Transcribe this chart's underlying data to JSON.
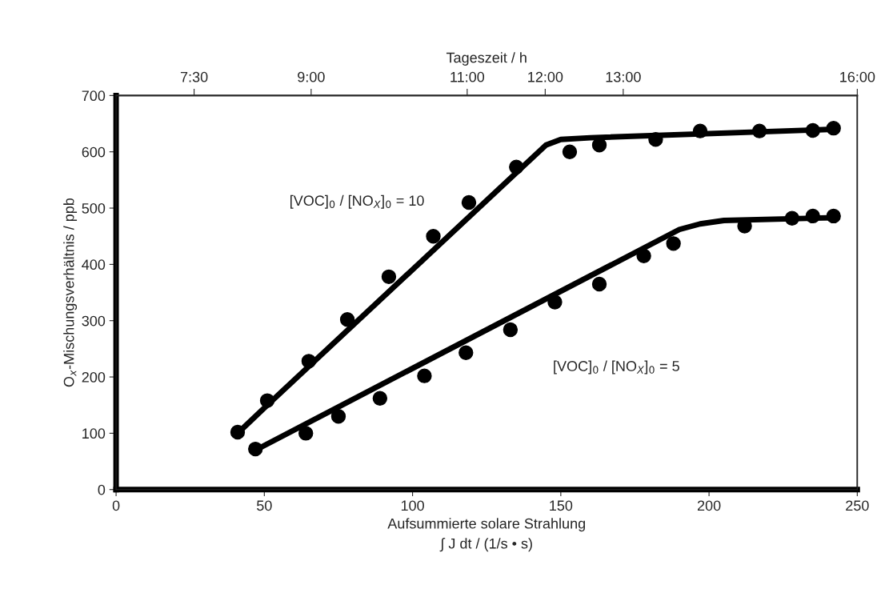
{
  "chart_data": {
    "type": "scatter",
    "xlabel": "Aufsummierte solare Strahlung\n∫ J dt / (1/s • s)",
    "ylabel": "O$_{x}$-Mischungsverhältnis / ppb",
    "x2label": "Tageszeit / h",
    "xlim": [
      0,
      250
    ],
    "xticks": [
      0,
      50,
      100,
      150,
      200,
      250
    ],
    "ylim": [
      0,
      700
    ],
    "yticks": [
      0,
      100,
      200,
      300,
      400,
      500,
      600,
      700
    ],
    "x2lim": [
      6.5,
      16
    ],
    "x2ticks": [
      {
        "value": 7.5,
        "label": "7:30"
      },
      {
        "value": 9,
        "label": "9:00"
      },
      {
        "value": 11,
        "label": "11:00"
      },
      {
        "value": 12,
        "label": "12:00"
      },
      {
        "value": 13,
        "label": "13:00"
      },
      {
        "value": 16,
        "label": "16:00"
      }
    ],
    "grid": false,
    "legend": false,
    "marker": "circle",
    "series": [
      {
        "color": "#000000",
        "x": [
          41,
          51,
          65,
          78,
          92,
          107,
          119,
          135,
          153,
          163,
          182,
          197,
          217,
          235,
          242
        ],
        "values": [
          102,
          158,
          228,
          302,
          378,
          450,
          510,
          573,
          600,
          612,
          622,
          637,
          637,
          638,
          642
        ]
      },
      {
        "color": "#000000",
        "x": [
          47,
          64,
          75,
          89,
          104,
          118,
          133,
          148,
          163,
          178,
          188,
          212,
          228,
          235,
          242
        ],
        "values": [
          72,
          100,
          130,
          162,
          202,
          243,
          284,
          333,
          365,
          415,
          437,
          468,
          482,
          486,
          486
        ]
      },
      {
        "type": "line",
        "marker": "none",
        "color": "#000000",
        "line_style": "solid",
        "x": [
          41,
          50,
          145,
          150,
          160,
          242
        ],
        "values": [
          100,
          145,
          612,
          622,
          625,
          640
        ]
      },
      {
        "type": "line",
        "marker": "none",
        "color": "#000000",
        "line_style": "solid",
        "x": [
          47,
          190,
          197,
          205,
          242
        ],
        "values": [
          70,
          462,
          472,
          478,
          483
        ]
      }
    ],
    "annotations": [
      "[VOC]$_{0}$ / [NO$_{X}$]$_{0}$ = 10",
      "[VOC]$_{0}$ / [NO$_{X}$]$_{0}$ = 5"
    ]
  }
}
